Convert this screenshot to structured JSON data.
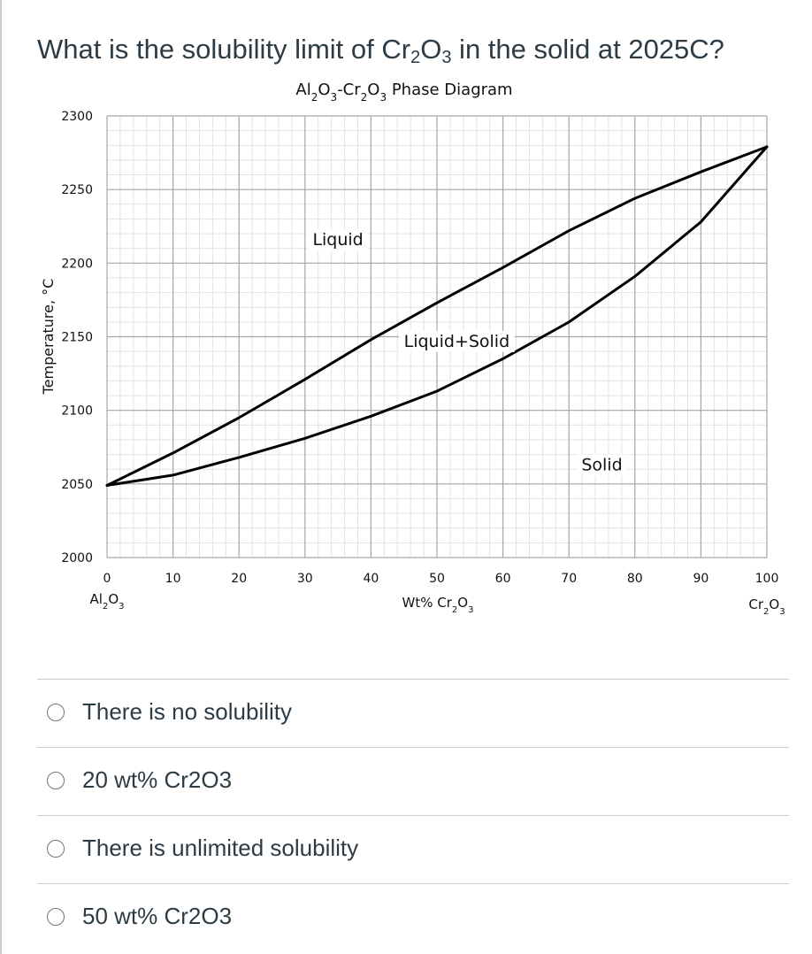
{
  "question": {
    "prefix": "What is the solubility limit of Cr",
    "sub1": "2",
    "mid": "O",
    "sub2": "3",
    "suffix": " in the solid at 2025C?"
  },
  "choices": [
    {
      "label": "There is no solubility",
      "selected": false
    },
    {
      "label": "20 wt% Cr2O3",
      "selected": false
    },
    {
      "label": "There is unlimited solubility",
      "selected": false
    },
    {
      "label": "50 wt% Cr2O3",
      "selected": false
    }
  ],
  "chart_data": {
    "type": "line",
    "title": "Al2O3-Cr2O3 Phase Diagram",
    "xlabel": "Wt% Cr2O3",
    "ylabel": "Temperature, °C",
    "xlim": [
      0,
      100
    ],
    "ylim": [
      2000,
      2300
    ],
    "x_ticks": [
      0,
      10,
      20,
      30,
      40,
      50,
      60,
      70,
      80,
      90,
      100
    ],
    "y_ticks": [
      2000,
      2050,
      2100,
      2150,
      2200,
      2250,
      2300
    ],
    "x_end_labels": {
      "left": "Al2O3",
      "right": "Cr2O3"
    },
    "grid": true,
    "series": [
      {
        "name": "liquidus",
        "x": [
          0,
          10,
          20,
          30,
          40,
          50,
          60,
          70,
          80,
          90,
          100
        ],
        "y": [
          2049,
          2071,
          2095,
          2121,
          2148,
          2173,
          2197,
          2222,
          2244,
          2262,
          2279
        ]
      },
      {
        "name": "solidus",
        "x": [
          0,
          10,
          20,
          30,
          40,
          50,
          60,
          70,
          80,
          90,
          100
        ],
        "y": [
          2049,
          2056,
          2068,
          2081,
          2096,
          2113,
          2135,
          2160,
          2191,
          2228,
          2279
        ]
      }
    ],
    "region_labels": [
      {
        "text": "Liquid",
        "x": 35,
        "y": 2214
      },
      {
        "text": "Liquid+Solid",
        "x": 53,
        "y": 2145
      },
      {
        "text": "Solid",
        "x": 75,
        "y": 2061
      }
    ],
    "colors": {
      "lines": "#000000",
      "grid_major": "#a6a6a6",
      "grid_minor": "#e2e2e2"
    }
  }
}
